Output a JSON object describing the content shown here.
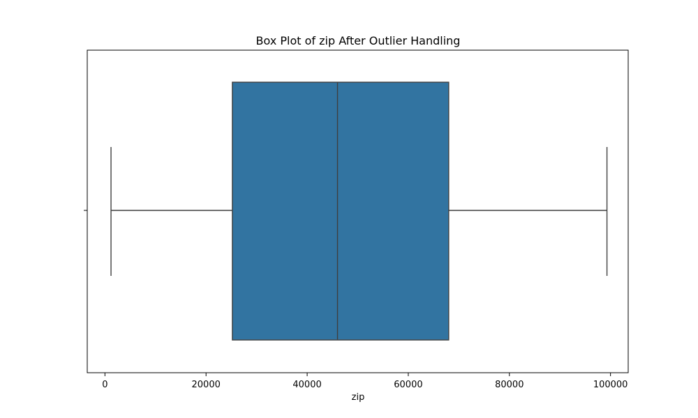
{
  "chart_data": {
    "type": "box",
    "title": "Box Plot of zip After Outlier Handling",
    "xlabel": "zip",
    "ylabel": "",
    "xlim": [
      -3500,
      103500
    ],
    "xticks": [
      0,
      20000,
      40000,
      60000,
      80000,
      100000
    ],
    "xtick_labels": [
      "0",
      "20000",
      "40000",
      "60000",
      "80000",
      "100000"
    ],
    "box": {
      "whisker_low": 1200,
      "q1": 25200,
      "median": 46000,
      "q3": 68000,
      "whisker_high": 99300
    },
    "box_color": "#3274a1",
    "line_color": "#3f3f3f",
    "grid": false
  }
}
